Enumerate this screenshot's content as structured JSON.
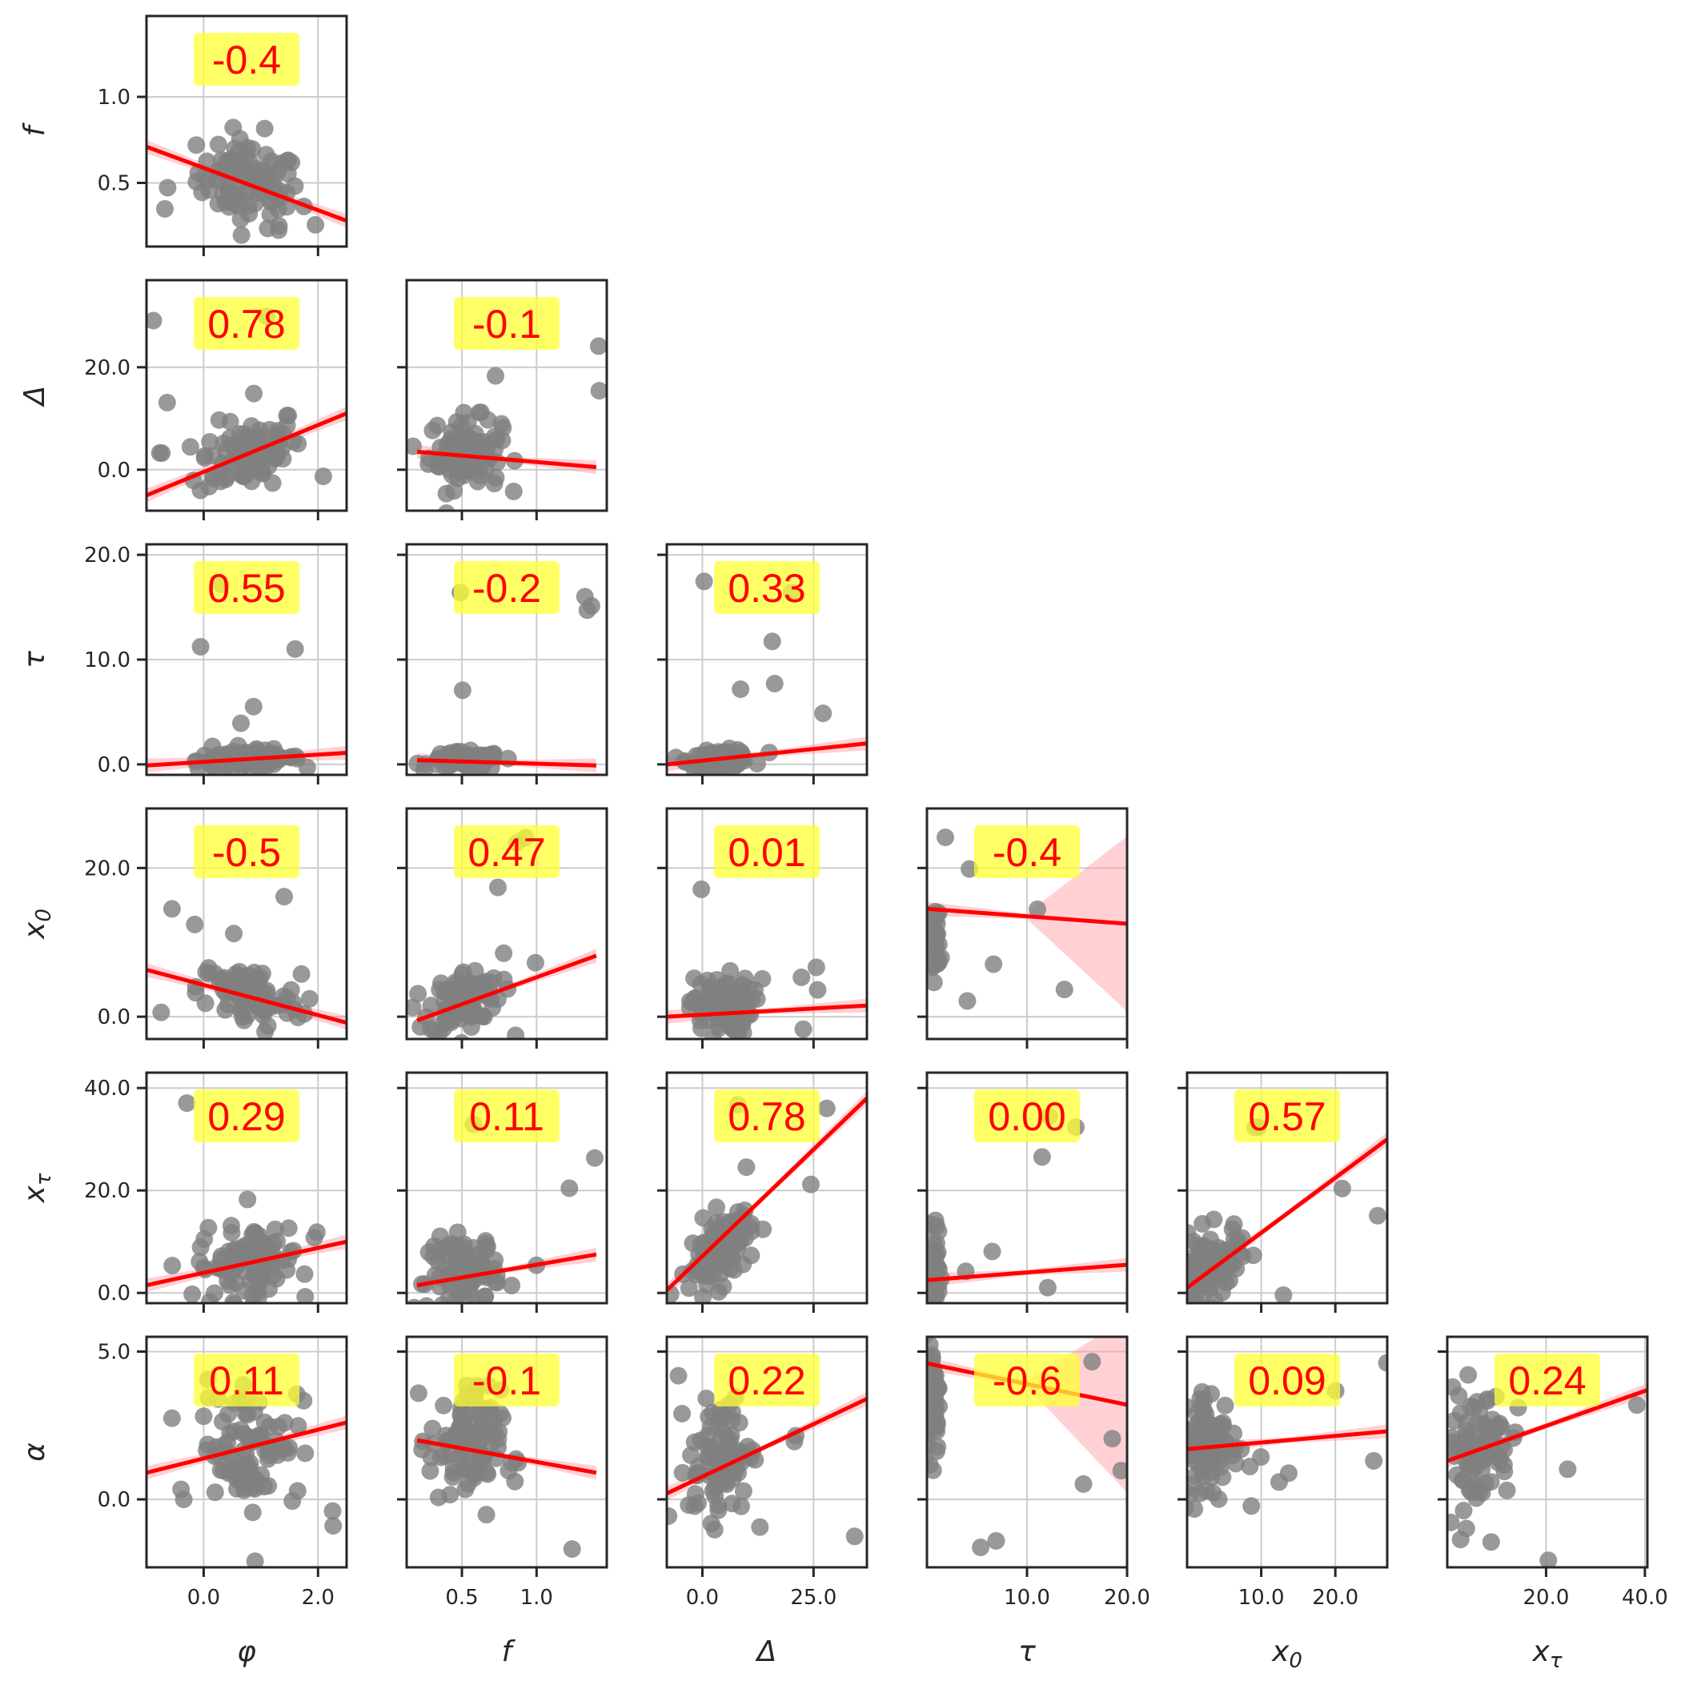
{
  "chart_data": {
    "type": "scatter",
    "title": "",
    "variables": [
      {
        "key": "phi",
        "label": "φ",
        "sub": "",
        "range": [
          -1.0,
          2.5
        ],
        "ticks": [
          0.0,
          2.0
        ],
        "tick_labels": [
          "0.0",
          "2.0"
        ]
      },
      {
        "key": "f",
        "label": "f",
        "sub": "",
        "range": [
          0.13,
          1.47
        ],
        "ticks": [
          0.5,
          1.0
        ],
        "tick_labels": [
          "0.5",
          "1.0"
        ]
      },
      {
        "key": "Delta",
        "label": "Δ",
        "sub": "",
        "range": [
          -8.0,
          37.0
        ],
        "ticks": [
          0.0,
          20.0
        ],
        "tick_labels": [
          "0.0",
          "20.0"
        ],
        "xticks": [
          0.0,
          25.0
        ],
        "xtick_labels": [
          "0.0",
          "25.0"
        ]
      },
      {
        "key": "tau",
        "label": "τ",
        "sub": "",
        "range": [
          -1.0,
          21.0
        ],
        "ticks": [
          0.0,
          10.0,
          20.0
        ],
        "tick_labels": [
          "0.0",
          "10.0",
          "20.0"
        ],
        "xrange": [
          0.0,
          20.0
        ],
        "xticks": [
          10.0,
          20.0
        ],
        "xtick_labels": [
          "10.0",
          "20.0"
        ]
      },
      {
        "key": "x0",
        "label": "x",
        "sub": "0",
        "range": [
          -3.0,
          28.0
        ],
        "ticks": [
          0.0,
          20.0
        ],
        "tick_labels": [
          "0.0",
          "20.0"
        ],
        "xrange": [
          0.0,
          27.0
        ],
        "xticks": [
          10.0,
          20.0
        ],
        "xtick_labels": [
          "10.0",
          "20.0"
        ]
      },
      {
        "key": "xtau",
        "label": "x",
        "sub": "τ",
        "range": [
          -2.0,
          43.0
        ],
        "ticks": [
          0.0,
          20.0,
          40.0
        ],
        "tick_labels": [
          "0.0",
          "20.0",
          "40.0"
        ],
        "xrange": [
          0.0,
          40.5
        ],
        "xticks": [
          20.0,
          40.0
        ],
        "xtick_labels": [
          "20.0",
          "40.0"
        ]
      },
      {
        "key": "alpha",
        "label": "α",
        "sub": "",
        "range": [
          -2.3,
          5.5
        ],
        "ticks": [
          0.0,
          5.0
        ],
        "tick_labels": [
          "0.0",
          "5.0"
        ]
      }
    ],
    "panels": [
      {
        "row": 0,
        "col": 0,
        "corr": "-0.4",
        "fit": [
          [
            -1.0,
            0.71
          ],
          [
            2.5,
            0.28
          ]
        ]
      },
      {
        "row": 1,
        "col": 0,
        "corr": "0.78",
        "fit": [
          [
            -1.0,
            -5.0
          ],
          [
            2.5,
            11.0
          ]
        ]
      },
      {
        "row": 1,
        "col": 1,
        "corr": "-0.1",
        "fit": [
          [
            0.2,
            3.5
          ],
          [
            1.4,
            0.5
          ]
        ]
      },
      {
        "row": 2,
        "col": 0,
        "corr": "0.55",
        "fit": [
          [
            -1.0,
            -0.1
          ],
          [
            2.5,
            1.1
          ]
        ]
      },
      {
        "row": 2,
        "col": 1,
        "corr": "-0.2",
        "fit": [
          [
            0.2,
            0.4
          ],
          [
            1.4,
            -0.1
          ]
        ]
      },
      {
        "row": 2,
        "col": 2,
        "corr": "0.33",
        "fit": [
          [
            -8.0,
            0.0
          ],
          [
            37.0,
            2.0
          ]
        ]
      },
      {
        "row": 3,
        "col": 0,
        "corr": "-0.5",
        "fit": [
          [
            -1.0,
            6.3
          ],
          [
            2.5,
            -0.8
          ]
        ]
      },
      {
        "row": 3,
        "col": 1,
        "corr": "0.47",
        "fit": [
          [
            0.2,
            -0.5
          ],
          [
            1.4,
            8.2
          ]
        ]
      },
      {
        "row": 3,
        "col": 2,
        "corr": "0.01",
        "fit": [
          [
            -8.0,
            0.0
          ],
          [
            37.0,
            1.5
          ]
        ]
      },
      {
        "row": 3,
        "col": 3,
        "corr": "-0.4",
        "fit": [
          [
            0.0,
            14.5
          ],
          [
            20.0,
            12.5
          ]
        ]
      },
      {
        "row": 4,
        "col": 0,
        "corr": "0.29",
        "fit": [
          [
            -1.0,
            1.5
          ],
          [
            2.5,
            10.0
          ]
        ]
      },
      {
        "row": 4,
        "col": 1,
        "corr": "0.11",
        "fit": [
          [
            0.2,
            1.5
          ],
          [
            1.4,
            7.5
          ]
        ]
      },
      {
        "row": 4,
        "col": 2,
        "corr": "0.78",
        "fit": [
          [
            -8.0,
            0.5
          ],
          [
            37.0,
            38.0
          ]
        ]
      },
      {
        "row": 4,
        "col": 3,
        "corr": "0.00",
        "fit": [
          [
            0.0,
            2.5
          ],
          [
            20.0,
            5.5
          ]
        ]
      },
      {
        "row": 4,
        "col": 4,
        "corr": "0.57",
        "fit": [
          [
            0.0,
            1.0
          ],
          [
            27.0,
            30.0
          ]
        ]
      },
      {
        "row": 5,
        "col": 0,
        "corr": "0.11",
        "fit": [
          [
            -1.0,
            0.9
          ],
          [
            2.5,
            2.6
          ]
        ]
      },
      {
        "row": 5,
        "col": 1,
        "corr": "-0.1",
        "fit": [
          [
            0.2,
            2.0
          ],
          [
            1.4,
            0.9
          ]
        ]
      },
      {
        "row": 5,
        "col": 2,
        "corr": "0.22",
        "fit": [
          [
            -8.0,
            0.2
          ],
          [
            37.0,
            3.4
          ]
        ]
      },
      {
        "row": 5,
        "col": 3,
        "corr": "-0.6",
        "fit": [
          [
            0.0,
            4.6
          ],
          [
            20.0,
            3.2
          ]
        ]
      },
      {
        "row": 5,
        "col": 4,
        "corr": "0.09",
        "fit": [
          [
            0.0,
            1.7
          ],
          [
            27.0,
            2.3
          ]
        ]
      },
      {
        "row": 5,
        "col": 5,
        "corr": "0.24",
        "fit": [
          [
            0.0,
            1.3
          ],
          [
            40.5,
            3.7
          ]
        ]
      }
    ],
    "styles": {
      "point_color": "#808080",
      "line_color": "#ff0000",
      "band_color": "#ff9aa2",
      "box_color": "#ffff33",
      "text_color": "#ff0000",
      "grid_color": "#cccccc",
      "frame_color": "#262626"
    }
  }
}
